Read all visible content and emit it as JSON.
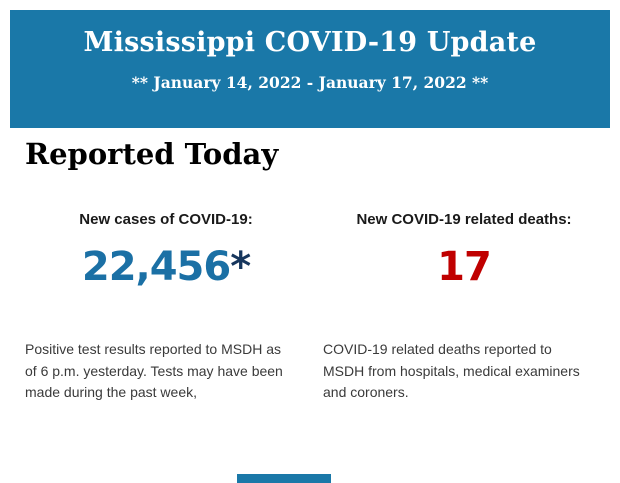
{
  "banner": {
    "title": "Mississippi COVID-19 Update",
    "date_range": "** January 14, 2022 - January 17, 2022 **",
    "background_color": "#1A78A8",
    "text_color": "#FFFFFF"
  },
  "report": {
    "heading": "Reported Today",
    "columns": [
      {
        "label": "New cases of COVID-19:",
        "value": "22,456",
        "value_suffix": "*",
        "value_color": "#1B70A5",
        "suffix_color": "#16365D",
        "description": "Positive test results reported to MSDH as\nof 6 p.m. yesterday. Tests may have been\nmade during the past week,"
      },
      {
        "label": "New COVID-19 related deaths:",
        "value": "17",
        "value_suffix": "",
        "value_color": "#C00000",
        "suffix_color": "#C00000",
        "description": "COVID-19 related deaths reported to\nMSDH from hospitals, medical examiners\nand coroners."
      }
    ]
  },
  "next_section": {
    "partial_bar_color": "#1A78A8"
  }
}
